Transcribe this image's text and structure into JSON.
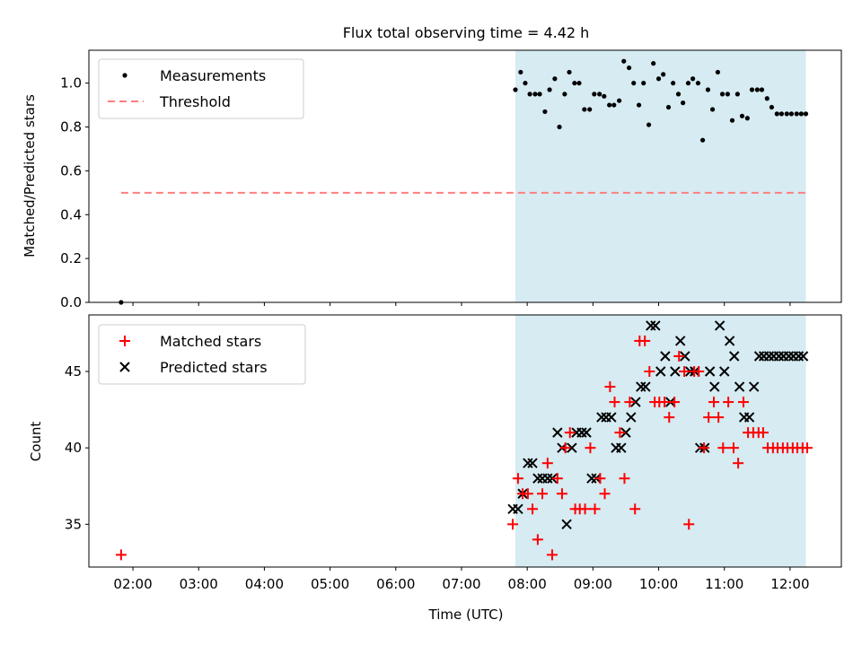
{
  "colors": {
    "band": "#add8e6",
    "threshold": "#ff7f7f",
    "matched": "#ff0000",
    "predicted": "#000000",
    "measurement": "#000000"
  },
  "chart_data": [
    {
      "type": "scatter",
      "title": "Flux total observing time = 4.42 h",
      "xlabel": "",
      "ylabel": "Matched/Predicted stars",
      "xlim": [
        1.33,
        12.78
      ],
      "ylim": [
        0.0,
        1.15
      ],
      "yticks": [
        0.0,
        0.2,
        0.4,
        0.6,
        0.8,
        1.0
      ],
      "ytick_labels": [
        "0.0",
        "0.2",
        "0.4",
        "0.6",
        "0.8",
        "1.0"
      ],
      "shaded_span_hours": [
        7.82,
        12.24
      ],
      "legend": [
        "Measurements",
        "Threshold"
      ],
      "legend_position": "upper-left",
      "threshold": {
        "name": "Threshold",
        "value": 0.5,
        "x_range": [
          1.82,
          12.24
        ]
      },
      "series": [
        {
          "name": "Measurements",
          "x": [
            1.82,
            7.82,
            7.9,
            7.97,
            8.04,
            8.12,
            8.19,
            8.27,
            8.34,
            8.42,
            8.49,
            8.57,
            8.64,
            8.72,
            8.79,
            8.87,
            8.95,
            9.02,
            9.1,
            9.17,
            9.25,
            9.32,
            9.4,
            9.47,
            9.55,
            9.62,
            9.7,
            9.77,
            9.85,
            9.92,
            10.0,
            10.07,
            10.15,
            10.22,
            10.3,
            10.37,
            10.45,
            10.52,
            10.6,
            10.67,
            10.75,
            10.82,
            10.9,
            10.97,
            11.05,
            11.12,
            11.2,
            11.27,
            11.35,
            11.42,
            11.5,
            11.57,
            11.65,
            11.72,
            11.8,
            11.87,
            11.95,
            12.02,
            12.1,
            12.17,
            12.24
          ],
          "y": [
            0.0,
            0.97,
            1.05,
            1.0,
            0.95,
            0.95,
            0.95,
            0.87,
            0.97,
            1.02,
            0.8,
            0.95,
            1.05,
            1.0,
            1.0,
            0.88,
            0.88,
            0.95,
            0.95,
            0.94,
            0.9,
            0.9,
            0.92,
            1.1,
            1.07,
            1.0,
            0.9,
            1.0,
            0.81,
            1.09,
            1.02,
            1.04,
            0.89,
            1.0,
            0.95,
            0.91,
            1.0,
            1.02,
            1.0,
            0.74,
            0.97,
            0.88,
            1.05,
            0.95,
            0.95,
            0.83,
            0.95,
            0.85,
            0.84,
            0.97,
            0.97,
            0.97,
            0.93,
            0.89,
            0.86,
            0.86,
            0.86,
            0.86,
            0.86,
            0.86,
            0.86
          ]
        }
      ]
    },
    {
      "type": "scatter",
      "title": "",
      "xlabel": "Time (UTC)",
      "ylabel": "Count",
      "xlim": [
        1.33,
        12.78
      ],
      "ylim": [
        32.2,
        48.7
      ],
      "yticks": [
        35,
        40,
        45
      ],
      "ytick_labels": [
        "35",
        "40",
        "45"
      ],
      "xticks": [
        2,
        3,
        4,
        5,
        6,
        7,
        8,
        9,
        10,
        11,
        12
      ],
      "xtick_labels": [
        "02:00",
        "03:00",
        "04:00",
        "05:00",
        "06:00",
        "07:00",
        "08:00",
        "09:00",
        "10:00",
        "11:00",
        "12:00"
      ],
      "shaded_span_hours": [
        7.82,
        12.24
      ],
      "legend": [
        "Matched stars",
        "Predicted stars"
      ],
      "legend_position": "upper-left",
      "series": [
        {
          "name": "Matched stars",
          "marker": "plus",
          "x": [
            1.82,
            7.78,
            7.86,
            7.93,
            8.01,
            8.08,
            8.16,
            8.23,
            8.31,
            8.38,
            8.46,
            8.53,
            8.58,
            8.65,
            8.73,
            8.8,
            8.88,
            8.96,
            9.03,
            9.11,
            9.18,
            9.26,
            9.33,
            9.41,
            9.48,
            9.56,
            9.64,
            9.71,
            9.79,
            9.86,
            9.94,
            10.01,
            10.09,
            10.16,
            10.24,
            10.31,
            10.39,
            10.46,
            10.54,
            10.61,
            10.69,
            10.76,
            10.84,
            10.91,
            10.98,
            11.06,
            11.14,
            11.21,
            11.29,
            11.36,
            11.44,
            11.52,
            11.59,
            11.66,
            11.74,
            11.81,
            11.89,
            11.96,
            12.04,
            12.11,
            12.19,
            12.26
          ],
          "y": [
            33,
            35,
            38,
            37,
            37,
            36,
            34,
            37,
            39,
            33,
            38,
            37,
            40,
            41,
            36,
            36,
            36,
            40,
            36,
            38,
            37,
            44,
            43,
            41,
            38,
            43,
            36,
            47,
            47,
            45,
            43,
            43,
            43,
            42,
            43,
            46,
            45,
            35,
            45,
            45,
            40,
            42,
            43,
            42,
            40,
            43,
            40,
            39,
            43,
            41,
            41,
            41,
            41,
            40,
            40,
            40,
            40,
            40,
            40,
            40,
            40,
            40
          ]
        },
        {
          "name": "Predicted stars",
          "marker": "x",
          "x": [
            7.78,
            7.86,
            7.93,
            8.01,
            8.08,
            8.16,
            8.23,
            8.31,
            8.38,
            8.46,
            8.53,
            8.6,
            8.68,
            8.75,
            8.83,
            8.9,
            8.98,
            9.05,
            9.13,
            9.2,
            9.28,
            9.35,
            9.43,
            9.5,
            9.58,
            9.65,
            9.73,
            9.8,
            9.88,
            9.95,
            10.03,
            10.1,
            10.18,
            10.25,
            10.33,
            10.4,
            10.48,
            10.55,
            10.63,
            10.7,
            10.78,
            10.85,
            10.93,
            11.0,
            11.08,
            11.15,
            11.23,
            11.3,
            11.38,
            11.45,
            11.53,
            11.6,
            11.68,
            11.75,
            11.83,
            11.9,
            11.98,
            12.05,
            12.13,
            12.2
          ],
          "y": [
            36,
            36,
            37,
            39,
            39,
            38,
            38,
            38,
            38,
            41,
            40,
            35,
            40,
            41,
            41,
            41,
            38,
            38,
            42,
            42,
            42,
            40,
            40,
            41,
            42,
            43,
            44,
            44,
            48,
            48,
            45,
            46,
            43,
            45,
            47,
            46,
            45,
            45,
            40,
            40,
            45,
            44,
            48,
            45,
            47,
            46,
            44,
            42,
            42,
            44,
            46,
            46,
            46,
            46,
            46,
            46,
            46,
            46,
            46,
            46
          ]
        }
      ]
    }
  ]
}
